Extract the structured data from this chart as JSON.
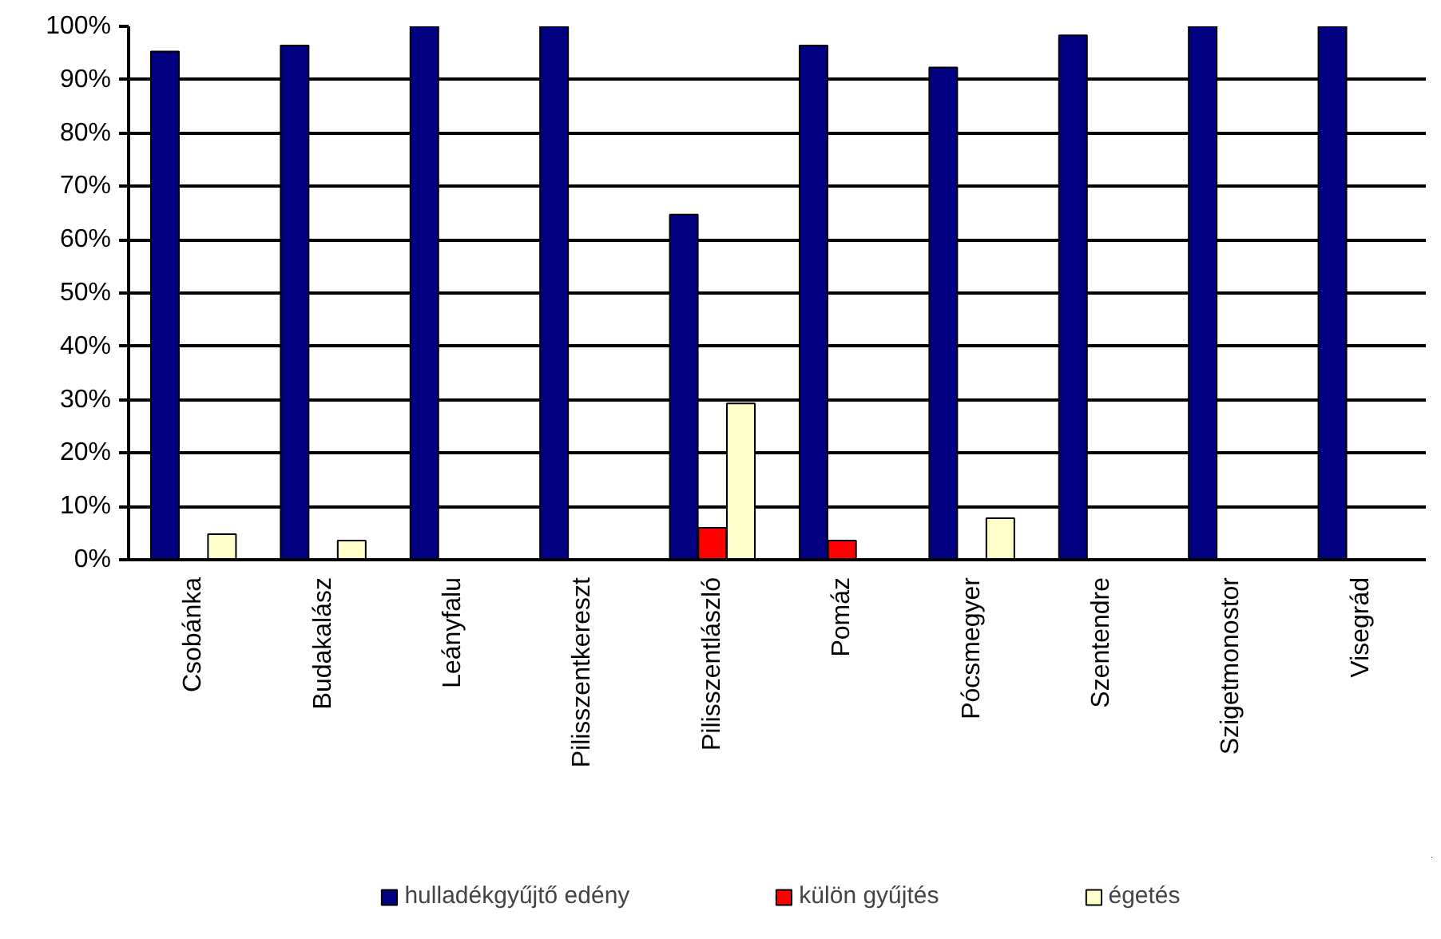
{
  "chart_data": {
    "type": "bar",
    "categories": [
      "Csobánka",
      "Budakalász",
      "Leányfalu",
      "Pilisszentkereszt",
      "Pilisszentlászló",
      "Pomáz",
      "Pócsmegyer",
      "Szentendre",
      "Szigetmonostor",
      "Visegrád"
    ],
    "series": [
      {
        "name": "hulladékgyűjtő edény",
        "color": "#000080",
        "values": [
          95.3,
          96.4,
          100,
          100,
          64.7,
          96.4,
          92.3,
          98.3,
          100,
          100
        ]
      },
      {
        "name": "külön gyűjtés",
        "color": "#ff0000",
        "values": [
          0,
          0,
          0,
          0,
          6.0,
          3.6,
          0,
          null,
          0,
          0
        ]
      },
      {
        "name": "égetés",
        "color": "#ffffcc",
        "values": [
          4.8,
          3.6,
          0,
          0,
          29.3,
          0,
          7.8,
          null,
          0,
          0
        ]
      }
    ],
    "ylim": [
      0,
      100
    ],
    "yticks": [
      {
        "value": 0,
        "label": "0%"
      },
      {
        "value": 10,
        "label": "10%"
      },
      {
        "value": 20,
        "label": "20%"
      },
      {
        "value": 30,
        "label": "30%"
      },
      {
        "value": 40,
        "label": "40%"
      },
      {
        "value": 50,
        "label": "50%"
      },
      {
        "value": 60,
        "label": "60%"
      },
      {
        "value": 70,
        "label": "70%"
      },
      {
        "value": 80,
        "label": "80%"
      },
      {
        "value": 90,
        "label": "90%"
      },
      {
        "value": 100,
        "label": "100%"
      }
    ],
    "grid": "y",
    "legend": "bottom"
  }
}
